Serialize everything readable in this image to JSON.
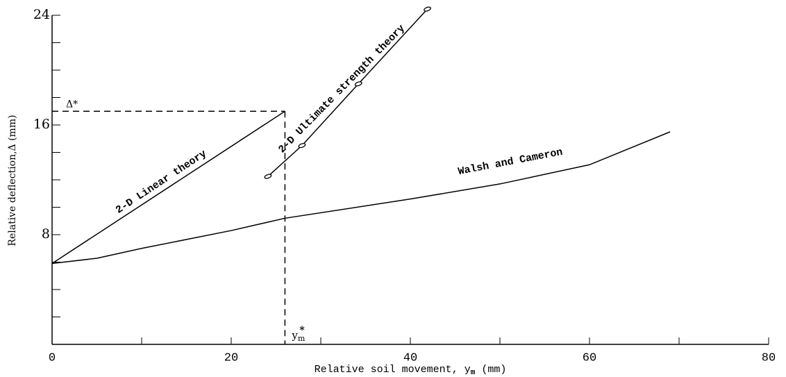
{
  "chart_data": {
    "type": "line",
    "y_label": "Relative deflection,Δ (mm)",
    "x_label_parts": [
      "Relative soil movement, y",
      "m",
      " (mm)"
    ],
    "xlim": [
      0,
      80
    ],
    "ylim": [
      0,
      24
    ],
    "xticks": [
      0,
      20,
      40,
      60,
      80
    ],
    "x_minor_ticks": [
      10,
      30,
      50,
      70
    ],
    "yticks": [
      8,
      16,
      24
    ],
    "y_minor_ticks": [
      2,
      4,
      6,
      10,
      12,
      14,
      18,
      20,
      22
    ],
    "color": "#000000",
    "series": [
      {
        "name": "2-D Linear theory",
        "x": [
          0,
          26
        ],
        "values": [
          5.9,
          17.0
        ],
        "markers": false
      },
      {
        "name": "2-D Ultimate strength theory",
        "x": [
          24.1,
          27.9,
          34.2,
          41.9
        ],
        "values": [
          12.25,
          14.5,
          19.0,
          24.45
        ],
        "markers": true
      },
      {
        "name": "Walsh and Cameron",
        "x": [
          0,
          5,
          10,
          20,
          26,
          40,
          50,
          60,
          69
        ],
        "values": [
          5.9,
          6.28,
          7.0,
          8.3,
          9.2,
          10.6,
          11.7,
          13.1,
          15.5
        ],
        "markers": false
      }
    ],
    "reference": {
      "x": 26,
      "y": 17.0,
      "y_label": "Δ*",
      "x_label_parts": [
        "y",
        "m",
        "*"
      ]
    }
  }
}
